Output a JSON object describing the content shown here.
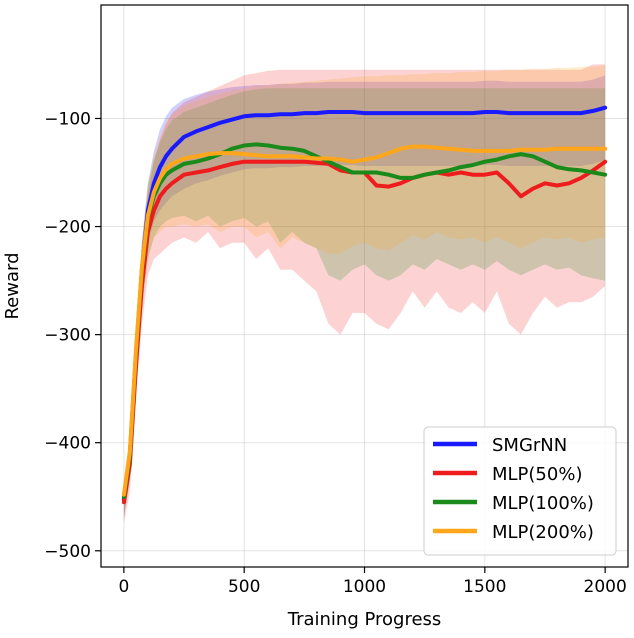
{
  "chart_data": {
    "type": "line",
    "title": "",
    "xlabel": "Training Progress",
    "ylabel": "Reward",
    "xlim": [
      -95,
      2095
    ],
    "ylim": [
      -515,
      5
    ],
    "xticks": [
      0,
      500,
      1000,
      1500,
      2000
    ],
    "xtick_labels": [
      "0",
      "500",
      "1000",
      "1500",
      "2000"
    ],
    "yticks": [
      -100,
      -200,
      -300,
      -400,
      -500
    ],
    "ytick_labels": [
      "−100",
      "−200",
      "−300",
      "−400",
      "−500"
    ],
    "grid": true,
    "legend_position": "lower-right",
    "x": [
      0,
      25,
      50,
      75,
      100,
      125,
      150,
      175,
      200,
      250,
      300,
      350,
      400,
      450,
      500,
      550,
      600,
      650,
      700,
      750,
      800,
      850,
      900,
      950,
      1000,
      1050,
      1100,
      1150,
      1200,
      1250,
      1300,
      1350,
      1400,
      1450,
      1500,
      1550,
      1600,
      1650,
      1700,
      1750,
      1800,
      1850,
      1900,
      1950,
      2000
    ],
    "series": [
      {
        "name": "SMGrNN",
        "color": "#1a1aff",
        "values": [
          -452,
          -410,
          -320,
          -240,
          -185,
          -160,
          -145,
          -135,
          -128,
          -117,
          -112,
          -108,
          -104,
          -101,
          -98,
          -97,
          -97,
          -96,
          -96,
          -95,
          -95,
          -94,
          -94,
          -94,
          -95,
          -95,
          -95,
          -95,
          -95,
          -95,
          -95,
          -95,
          -95,
          -95,
          -94,
          -94,
          -95,
          -95,
          -95,
          -95,
          -95,
          -95,
          -95,
          -93,
          -90
        ],
        "upper": [
          -438,
          -395,
          -300,
          -215,
          -160,
          -130,
          -110,
          -98,
          -90,
          -82,
          -78,
          -75,
          -73,
          -71,
          -70,
          -69,
          -69,
          -68,
          -68,
          -67,
          -67,
          -66,
          -66,
          -66,
          -66,
          -66,
          -66,
          -66,
          -66,
          -66,
          -66,
          -66,
          -66,
          -66,
          -65,
          -65,
          -66,
          -66,
          -66,
          -66,
          -66,
          -66,
          -66,
          -64,
          -60
        ],
        "lower": [
          -470,
          -430,
          -345,
          -270,
          -215,
          -195,
          -185,
          -178,
          -172,
          -165,
          -160,
          -157,
          -153,
          -150,
          -147,
          -146,
          -146,
          -145,
          -145,
          -144,
          -144,
          -143,
          -143,
          -143,
          -144,
          -144,
          -144,
          -144,
          -144,
          -144,
          -144,
          -144,
          -144,
          -144,
          -143,
          -143,
          -144,
          -144,
          -144,
          -144,
          -144,
          -144,
          -144,
          -142,
          -138
        ]
      },
      {
        "name": "MLP(50%)",
        "color": "#ee1c1c",
        "values": [
          -455,
          -420,
          -330,
          -255,
          -205,
          -185,
          -172,
          -165,
          -160,
          -152,
          -150,
          -148,
          -145,
          -142,
          -140,
          -140,
          -140,
          -140,
          -140,
          -140,
          -141,
          -142,
          -148,
          -150,
          -150,
          -162,
          -163,
          -160,
          -155,
          -152,
          -150,
          -152,
          -150,
          -152,
          -152,
          -150,
          -160,
          -172,
          -165,
          -160,
          -162,
          -160,
          -155,
          -148,
          -140
        ],
        "upper": [
          -440,
          -400,
          -305,
          -225,
          -170,
          -140,
          -120,
          -105,
          -95,
          -85,
          -80,
          -75,
          -70,
          -65,
          -60,
          -58,
          -56,
          -55,
          -55,
          -55,
          -55,
          -55,
          -55,
          -55,
          -55,
          -55,
          -55,
          -55,
          -55,
          -55,
          -55,
          -55,
          -55,
          -55,
          -55,
          -55,
          -55,
          -55,
          -55,
          -55,
          -55,
          -55,
          -55,
          -50,
          -50
        ],
        "lower": [
          -475,
          -445,
          -360,
          -290,
          -245,
          -230,
          -225,
          -220,
          -215,
          -210,
          -215,
          -205,
          -220,
          -215,
          -215,
          -230,
          -220,
          -240,
          -240,
          -250,
          -260,
          -290,
          -300,
          -280,
          -280,
          -290,
          -295,
          -280,
          -260,
          -275,
          -260,
          -275,
          -280,
          -270,
          -280,
          -260,
          -290,
          -300,
          -280,
          -265,
          -275,
          -270,
          -270,
          -265,
          -255
        ]
      },
      {
        "name": "MLP(100%)",
        "color": "#1a8a1a",
        "values": [
          -450,
          -412,
          -318,
          -240,
          -192,
          -172,
          -160,
          -152,
          -148,
          -142,
          -140,
          -137,
          -133,
          -128,
          -125,
          -124,
          -125,
          -127,
          -128,
          -130,
          -135,
          -140,
          -145,
          -150,
          -150,
          -150,
          -152,
          -155,
          -155,
          -152,
          -150,
          -148,
          -145,
          -143,
          -140,
          -138,
          -135,
          -133,
          -135,
          -140,
          -145,
          -147,
          -148,
          -150,
          -152
        ],
        "upper": [
          -436,
          -395,
          -298,
          -215,
          -162,
          -138,
          -122,
          -110,
          -102,
          -94,
          -90,
          -86,
          -82,
          -78,
          -75,
          -73,
          -72,
          -72,
          -72,
          -72,
          -72,
          -72,
          -72,
          -72,
          -72,
          -72,
          -72,
          -72,
          -72,
          -72,
          -72,
          -72,
          -72,
          -72,
          -72,
          -72,
          -72,
          -72,
          -72,
          -72,
          -72,
          -72,
          -72,
          -72,
          -72
        ],
        "lower": [
          -468,
          -435,
          -345,
          -275,
          -230,
          -210,
          -200,
          -195,
          -192,
          -190,
          -195,
          -190,
          -200,
          -195,
          -192,
          -200,
          -195,
          -215,
          -205,
          -215,
          -220,
          -245,
          -250,
          -240,
          -235,
          -245,
          -250,
          -245,
          -235,
          -240,
          -230,
          -235,
          -240,
          -235,
          -240,
          -232,
          -240,
          -245,
          -240,
          -235,
          -240,
          -238,
          -245,
          -248,
          -250
        ]
      },
      {
        "name": "MLP(200%)",
        "color": "#ffa61a",
        "values": [
          -448,
          -408,
          -315,
          -238,
          -190,
          -168,
          -155,
          -147,
          -142,
          -137,
          -135,
          -133,
          -132,
          -132,
          -133,
          -134,
          -135,
          -135,
          -135,
          -136,
          -137,
          -137,
          -138,
          -140,
          -138,
          -136,
          -132,
          -128,
          -126,
          -126,
          -127,
          -128,
          -129,
          -130,
          -130,
          -130,
          -130,
          -129,
          -129,
          -129,
          -128,
          -128,
          -128,
          -128,
          -128
        ],
        "upper": [
          -434,
          -392,
          -295,
          -213,
          -160,
          -134,
          -116,
          -104,
          -96,
          -88,
          -84,
          -80,
          -77,
          -74,
          -72,
          -70,
          -69,
          -68,
          -67,
          -66,
          -65,
          -64,
          -63,
          -62,
          -61,
          -61,
          -60,
          -60,
          -59,
          -59,
          -58,
          -58,
          -57,
          -57,
          -56,
          -56,
          -55,
          -55,
          -54,
          -54,
          -53,
          -53,
          -52,
          -52,
          -51
        ],
        "lower": [
          -466,
          -432,
          -342,
          -272,
          -228,
          -210,
          -205,
          -200,
          -200,
          -198,
          -200,
          -198,
          -205,
          -200,
          -200,
          -210,
          -205,
          -220,
          -210,
          -215,
          -220,
          -225,
          -225,
          -218,
          -215,
          -220,
          -222,
          -215,
          -208,
          -212,
          -205,
          -210,
          -212,
          -210,
          -215,
          -210,
          -215,
          -220,
          -215,
          -210,
          -212,
          -210,
          -215,
          -212,
          -210
        ]
      }
    ]
  }
}
